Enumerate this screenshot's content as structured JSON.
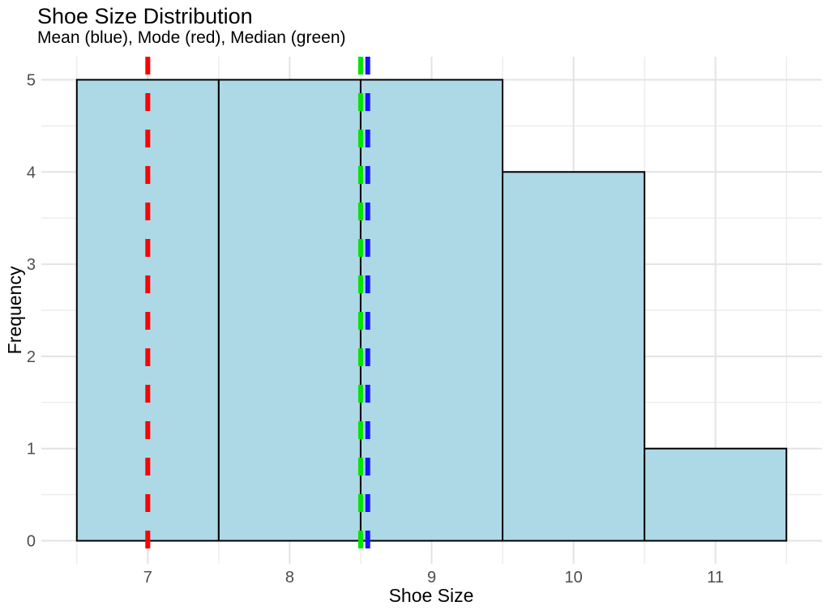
{
  "chart_data": {
    "type": "bar",
    "variant": "histogram",
    "title": "Shoe Size Distribution",
    "subtitle": "Mean (blue), Mode (red), Median (green)",
    "xlabel": "Shoe Size",
    "ylabel": "Frequency",
    "bin_edges": [
      6.5,
      7.5,
      8.5,
      9.5,
      10.5,
      11.5
    ],
    "frequencies": [
      5,
      5,
      5,
      4,
      1
    ],
    "x_ticks": [
      7,
      8,
      9,
      10,
      11
    ],
    "y_ticks": [
      0,
      1,
      2,
      3,
      4,
      5
    ],
    "x_minor_gridlines": [
      6.5,
      7.5,
      8.5,
      9.5,
      10.5,
      11.5
    ],
    "y_minor_gridlines": [
      0.5,
      1.5,
      2.5,
      3.5,
      4.5
    ],
    "xlim": [
      6.25,
      11.75
    ],
    "ylim": [
      -0.25,
      5.25
    ],
    "grid": "on",
    "legend": "none",
    "bar_fill": "#ADD8E6",
    "bar_stroke": "#000000",
    "stat_lines": [
      {
        "name": "mean",
        "value": 8.55,
        "color": "#1414FF",
        "linetype": "dashed"
      },
      {
        "name": "mode",
        "value": 7,
        "color": "#FF0000",
        "linetype": "dashed"
      },
      {
        "name": "median",
        "value": 8.5,
        "color": "#00E400",
        "linetype": "dashed"
      }
    ]
  }
}
